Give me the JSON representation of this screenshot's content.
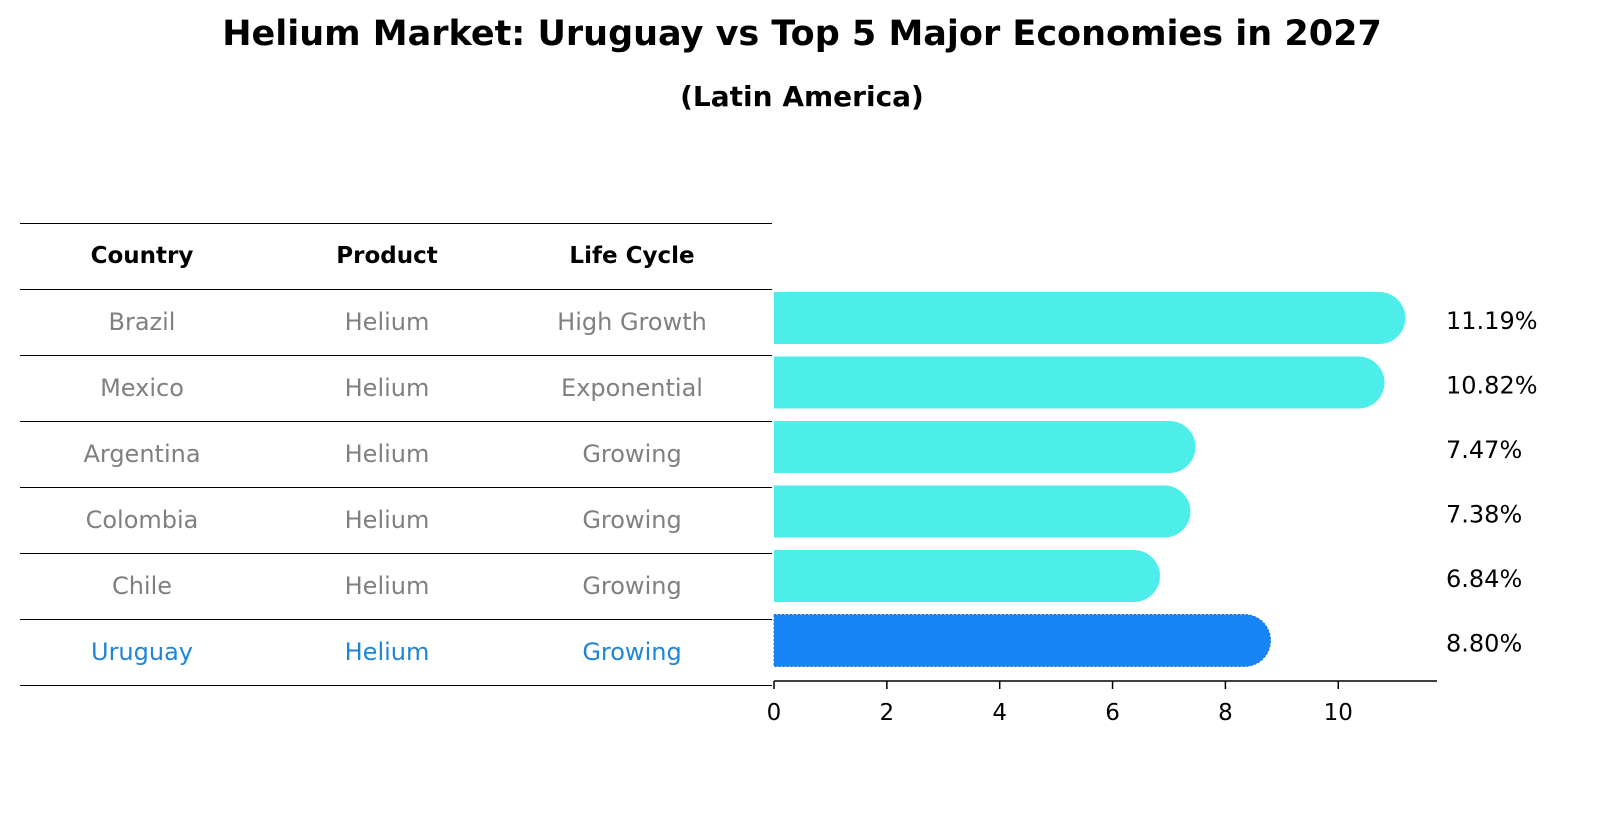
{
  "title": "Helium Market: Uruguay vs Top 5 Major Economies in 2027",
  "subtitle": "(Latin America)",
  "colors": {
    "bar": "#4DEEEA",
    "highlight_bar": "#1785F5",
    "row_text": "#808080",
    "highlight_text": "#1F85D6"
  },
  "table": {
    "headers": [
      "Country",
      "Product",
      "Life Cycle"
    ],
    "rows": [
      {
        "country": "Brazil",
        "product": "Helium",
        "life_cycle": "High Growth",
        "highlight": false
      },
      {
        "country": "Mexico",
        "product": "Helium",
        "life_cycle": "Exponential",
        "highlight": false
      },
      {
        "country": "Argentina",
        "product": "Helium",
        "life_cycle": "Growing",
        "highlight": false
      },
      {
        "country": "Colombia",
        "product": "Helium",
        "life_cycle": "Growing",
        "highlight": false
      },
      {
        "country": "Chile",
        "product": "Helium",
        "life_cycle": "Growing",
        "highlight": false
      },
      {
        "country": "Uruguay",
        "product": "Helium",
        "life_cycle": "Growing",
        "highlight": true
      }
    ]
  },
  "chart_data": {
    "type": "bar",
    "orientation": "horizontal",
    "categories": [
      "Brazil",
      "Mexico",
      "Argentina",
      "Colombia",
      "Chile",
      "Uruguay"
    ],
    "values": [
      11.19,
      10.82,
      7.47,
      7.38,
      6.84,
      8.8
    ],
    "value_labels": [
      "11.19%",
      "10.82%",
      "7.47%",
      "7.38%",
      "6.84%",
      "8.80%"
    ],
    "highlight": "Uruguay",
    "xlim": [
      0,
      11.75
    ],
    "xticks": [
      0,
      2,
      4,
      6,
      8,
      10
    ],
    "xtick_labels": [
      "0",
      "2",
      "4",
      "6",
      "8",
      "10"
    ],
    "xlabel": "",
    "ylabel": "",
    "grid": false
  }
}
